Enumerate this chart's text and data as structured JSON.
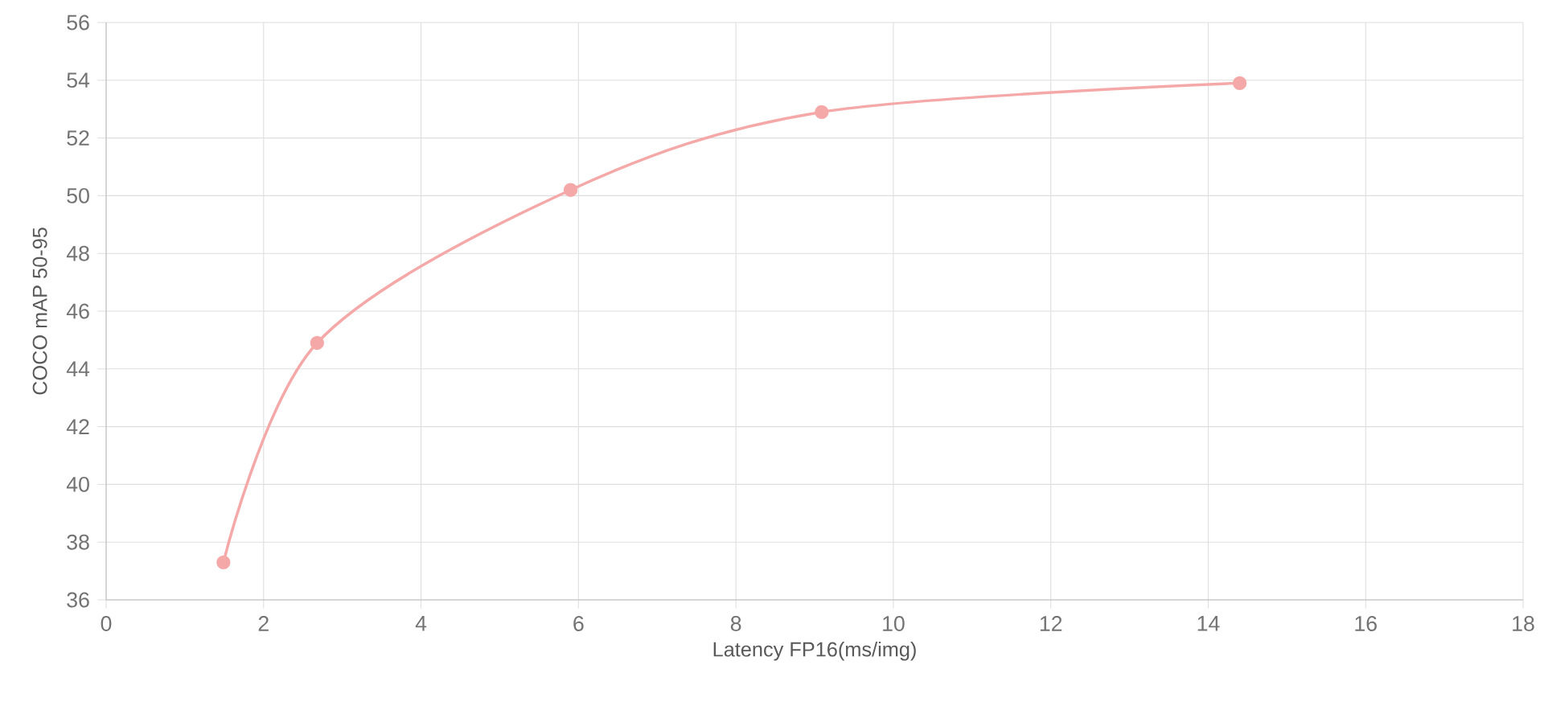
{
  "chart_data": {
    "type": "line",
    "xlabel": "Latency FP16(ms/img)",
    "ylabel": "COCO mAP 50-95",
    "x": [
      1.49,
      2.68,
      5.9,
      9.09,
      14.4
    ],
    "series": [
      {
        "color": "#f4a9a8",
        "values": [
          37.3,
          44.9,
          50.2,
          52.9,
          53.9
        ]
      }
    ],
    "xlim": [
      0,
      18
    ],
    "xticks": [
      0,
      2,
      4,
      6,
      8,
      10,
      12,
      14,
      16,
      18
    ],
    "ylim": [
      36,
      56
    ],
    "yticks": [
      36,
      38,
      40,
      42,
      44,
      46,
      48,
      50,
      52,
      54,
      56
    ],
    "grid": true,
    "marker": "circle",
    "line_style": "solid"
  }
}
